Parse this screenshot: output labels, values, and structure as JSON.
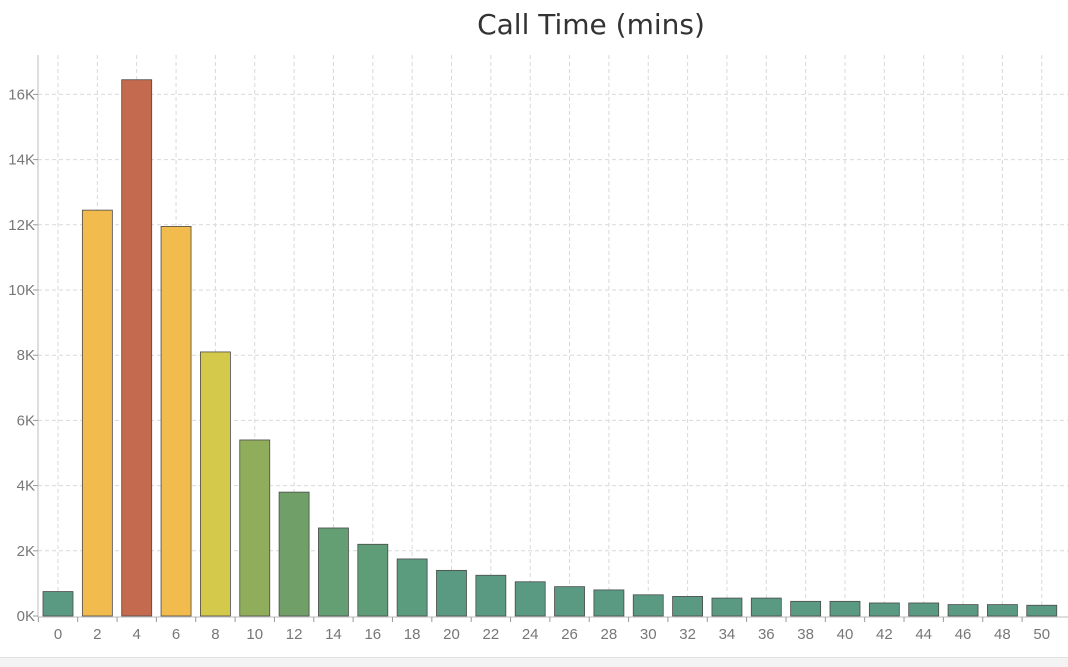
{
  "chart_data": {
    "type": "bar",
    "title": "Call Time (mins)",
    "xlabel": "",
    "ylabel": "",
    "categories": [
      "0",
      "2",
      "4",
      "6",
      "8",
      "10",
      "12",
      "14",
      "16",
      "18",
      "20",
      "22",
      "24",
      "26",
      "28",
      "30",
      "32",
      "34",
      "36",
      "38",
      "40",
      "42",
      "44",
      "46",
      "48",
      "50"
    ],
    "values": [
      750,
      12450,
      16450,
      11950,
      8100,
      5400,
      3800,
      2700,
      2200,
      1750,
      1400,
      1250,
      1050,
      900,
      800,
      650,
      600,
      550,
      550,
      450,
      450,
      400,
      400,
      350,
      350,
      330
    ],
    "bar_colors": [
      "#5a9a82",
      "#f2bb4e",
      "#c36a4f",
      "#f2bb4e",
      "#d4c94a",
      "#8fad5a",
      "#70a068",
      "#649e73",
      "#5f9d78",
      "#5b9b7e",
      "#5a9a82",
      "#5a9a82",
      "#5a9a82",
      "#5a9a82",
      "#5a9a82",
      "#5a9a82",
      "#5a9a82",
      "#5a9a82",
      "#5a9a82",
      "#5a9a82",
      "#5a9a82",
      "#5a9a82",
      "#5a9a82",
      "#5a9a82",
      "#5a9a82",
      "#5a9a82"
    ],
    "y_ticks": [
      0,
      2000,
      4000,
      6000,
      8000,
      10000,
      12000,
      14000,
      16000
    ],
    "y_tick_labels": [
      "0K",
      "2K",
      "4K",
      "6K",
      "8K",
      "10K",
      "12K",
      "14K",
      "16K"
    ],
    "ylim": [
      0,
      17250
    ],
    "grid": true,
    "legend": "none"
  }
}
